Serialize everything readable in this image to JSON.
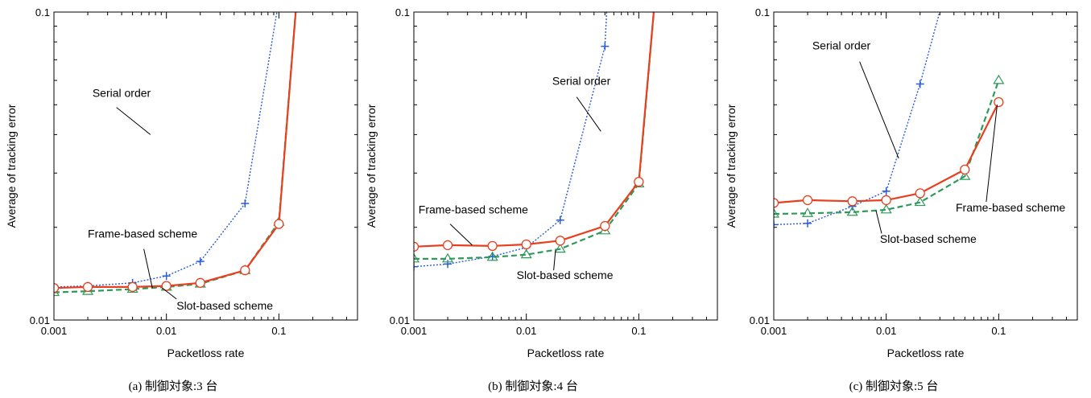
{
  "chart_data": [
    {
      "type": "line",
      "caption": "(a) 制御対象:3 台",
      "xlabel": "Packetloss rate",
      "ylabel": "Average of tracking error",
      "xscale": "log",
      "yscale": "log",
      "xlim": [
        0.001,
        0.5
      ],
      "ylim": [
        0.01,
        0.1
      ],
      "xticks": [
        {
          "v": 0.001,
          "label": "0.001"
        },
        {
          "v": 0.01,
          "label": "0.01"
        },
        {
          "v": 0.1,
          "label": "0.1"
        }
      ],
      "yticks": [
        {
          "v": 0.01,
          "label": "0.01"
        },
        {
          "v": 0.1,
          "label": "0.1"
        }
      ],
      "series": [
        {
          "key": "serial",
          "x": [
            0.001,
            0.002,
            0.005,
            0.01,
            0.02,
            0.05,
            0.2
          ],
          "y": [
            0.0128,
            0.0129,
            0.0132,
            0.0139,
            0.0155,
            0.0239,
            0.5
          ]
        },
        {
          "key": "frame",
          "x": [
            0.001,
            0.002,
            0.005,
            0.01,
            0.02,
            0.05,
            0.1,
            0.2
          ],
          "y": [
            0.0127,
            0.0128,
            0.0128,
            0.0129,
            0.0132,
            0.0145,
            0.0205,
            0.5
          ]
        },
        {
          "key": "slot",
          "x": [
            0.001,
            0.002,
            0.005,
            0.01,
            0.02,
            0.05,
            0.1,
            0.2
          ],
          "y": [
            0.0123,
            0.0124,
            0.0126,
            0.0128,
            0.0131,
            0.0145,
            0.0208,
            0.5
          ]
        }
      ],
      "annotations": [
        {
          "text": "Serial order",
          "x": 0.0022,
          "y": 0.053,
          "lx1": 0.0036,
          "ly1": 0.049,
          "lx2": 0.0072,
          "ly2": 0.04
        },
        {
          "text": "Frame-based scheme",
          "x": 0.002,
          "y": 0.0185,
          "lx1": 0.0063,
          "ly1": 0.017,
          "lx2": 0.0075,
          "ly2": 0.0127
        },
        {
          "text": "Slot-based scheme",
          "x": 0.0123,
          "y": 0.0108,
          "lx1": 0.0123,
          "ly1": 0.0117,
          "lx2": 0.0092,
          "ly2": 0.0127
        }
      ]
    },
    {
      "type": "line",
      "caption": "(b) 制御対象:4 台",
      "xlabel": "Packetloss rate",
      "ylabel": "Average of tracking error",
      "xscale": "log",
      "yscale": "log",
      "xlim": [
        0.001,
        0.5
      ],
      "ylim": [
        0.01,
        0.1
      ],
      "xticks": [
        {
          "v": 0.001,
          "label": "0.001"
        },
        {
          "v": 0.01,
          "label": "0.01"
        },
        {
          "v": 0.1,
          "label": "0.1"
        }
      ],
      "yticks": [
        {
          "v": 0.01,
          "label": "0.01"
        },
        {
          "v": 0.1,
          "label": "0.1"
        }
      ],
      "series": [
        {
          "key": "serial",
          "x": [
            0.001,
            0.002,
            0.005,
            0.01,
            0.02,
            0.05,
            0.065
          ],
          "y": [
            0.0149,
            0.0152,
            0.0161,
            0.0172,
            0.0211,
            0.0774,
            0.5
          ]
        },
        {
          "key": "frame",
          "x": [
            0.001,
            0.002,
            0.005,
            0.01,
            0.02,
            0.05,
            0.1,
            0.2
          ],
          "y": [
            0.0173,
            0.0175,
            0.0174,
            0.0176,
            0.0181,
            0.0202,
            0.0281,
            0.5
          ]
        },
        {
          "key": "slot",
          "x": [
            0.001,
            0.002,
            0.005,
            0.01,
            0.02,
            0.05,
            0.1,
            0.2
          ],
          "y": [
            0.0158,
            0.0158,
            0.016,
            0.0163,
            0.017,
            0.0195,
            0.0277,
            0.5
          ]
        }
      ],
      "annotations": [
        {
          "text": "Serial order",
          "x": 0.017,
          "y": 0.058,
          "lx1": 0.028,
          "ly1": 0.053,
          "lx2": 0.046,
          "ly2": 0.041
        },
        {
          "text": "Frame-based scheme",
          "x": 0.0011,
          "y": 0.0222,
          "lx1": 0.0021,
          "ly1": 0.0205,
          "lx2": 0.0033,
          "ly2": 0.0175
        },
        {
          "text": "Slot-based scheme",
          "x": 0.0082,
          "y": 0.0136,
          "lx1": 0.0175,
          "ly1": 0.0145,
          "lx2": 0.0182,
          "ly2": 0.0169
        }
      ]
    },
    {
      "type": "line",
      "caption": "(c) 制御対象:5 台",
      "xlabel": "Packetloss rate",
      "ylabel": "Average of tracking error",
      "xscale": "log",
      "yscale": "log",
      "xlim": [
        0.001,
        0.5
      ],
      "ylim": [
        0.01,
        0.1
      ],
      "xticks": [
        {
          "v": 0.001,
          "label": "0.001"
        },
        {
          "v": 0.01,
          "label": "0.01"
        },
        {
          "v": 0.1,
          "label": "0.1"
        }
      ],
      "yticks": [
        {
          "v": 0.01,
          "label": "0.01"
        },
        {
          "v": 0.1,
          "label": "0.1"
        }
      ],
      "series": [
        {
          "key": "serial",
          "x": [
            0.001,
            0.002,
            0.005,
            0.01,
            0.02,
            0.05
          ],
          "y": [
            0.0204,
            0.0206,
            0.0234,
            0.0262,
            0.0584,
            0.2
          ]
        },
        {
          "key": "frame",
          "x": [
            0.001,
            0.002,
            0.005,
            0.01,
            0.02,
            0.05,
            0.1
          ],
          "y": [
            0.024,
            0.0245,
            0.0243,
            0.0245,
            0.0258,
            0.0308,
            0.051
          ]
        },
        {
          "key": "slot",
          "x": [
            0.001,
            0.002,
            0.005,
            0.01,
            0.02,
            0.05,
            0.1
          ],
          "y": [
            0.0221,
            0.0222,
            0.0224,
            0.0228,
            0.0241,
            0.0293,
            0.06
          ]
        }
      ],
      "annotations": [
        {
          "text": "Serial order",
          "x": 0.0022,
          "y": 0.0755,
          "lx1": 0.0058,
          "ly1": 0.069,
          "lx2": 0.0129,
          "ly2": 0.0335
        },
        {
          "text": "Frame-based scheme",
          "x": 0.0415,
          "y": 0.0225,
          "lx1": 0.0775,
          "ly1": 0.0242,
          "lx2": 0.097,
          "ly2": 0.05
        },
        {
          "text": "Slot-based scheme",
          "x": 0.0088,
          "y": 0.0178,
          "lx1": 0.0091,
          "ly1": 0.0191,
          "lx2": 0.0081,
          "ly2": 0.0227
        }
      ]
    }
  ],
  "series_style": {
    "serial": {
      "color": "#2a5bd7",
      "marker": "plus",
      "dash": "2,2",
      "width": 1.4
    },
    "frame": {
      "color": "#e8401e",
      "marker": "circle",
      "dash": "",
      "width": 2.2
    },
    "slot": {
      "color": "#2e9a5a",
      "marker": "triangle",
      "dash": "7,4",
      "width": 2.2
    }
  }
}
